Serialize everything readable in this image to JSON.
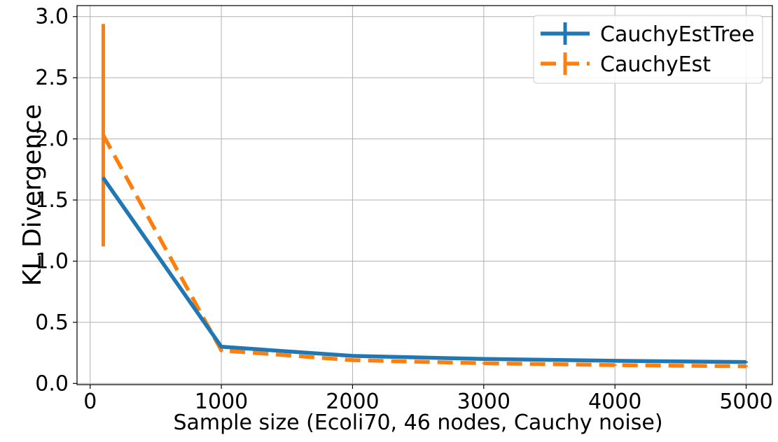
{
  "chart_data": {
    "type": "line",
    "xlabel": "Sample size (Ecoli70, 46 nodes, Cauchy noise)",
    "ylabel": "KL Divergence",
    "xlim": [
      -100,
      5200
    ],
    "ylim": [
      -0.01,
      3.09
    ],
    "xticks": [
      0,
      1000,
      2000,
      3000,
      4000,
      5000
    ],
    "xtick_labels": [
      "0",
      "1000",
      "2000",
      "3000",
      "4000",
      "5000"
    ],
    "yticks": [
      0.0,
      0.5,
      1.0,
      1.5,
      2.0,
      2.5,
      3.0
    ],
    "ytick_labels": [
      "0.0",
      "0.5",
      "1.0",
      "1.5",
      "2.0",
      "2.5",
      "3.0"
    ],
    "grid": true,
    "legend_position": "top-right",
    "x": [
      100,
      1000,
      2000,
      3000,
      4000,
      5000
    ],
    "series": [
      {
        "name": "CauchyEstTree",
        "color": "#1f77b4",
        "line_style": "solid",
        "values": [
          1.68,
          0.3,
          0.225,
          0.2,
          0.185,
          0.175
        ],
        "error": [
          0.0,
          0.01,
          0.01,
          0.01,
          0.01,
          0.005
        ]
      },
      {
        "name": "CauchyEst",
        "color": "#ff7f0e",
        "line_style": "dashed",
        "values": [
          2.03,
          0.27,
          0.19,
          0.165,
          0.15,
          0.14
        ],
        "error": [
          0.91,
          0.01,
          0.005,
          0.005,
          0.005,
          0.005
        ]
      }
    ]
  }
}
